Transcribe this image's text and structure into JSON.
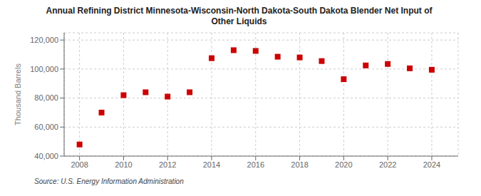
{
  "chart_data": {
    "type": "scatter",
    "title": "Annual Refining District Minnesota-Wisconsin-North Dakota-South Dakota Blender Net Input of\nOther Liquids",
    "ylabel": "Thousand Barrels",
    "source": "Source: U.S. Energy Information Administration",
    "x": [
      2008,
      2009,
      2010,
      2011,
      2012,
      2013,
      2014,
      2015,
      2016,
      2017,
      2018,
      2019,
      2020,
      2021,
      2022,
      2023,
      2024
    ],
    "values": [
      48000,
      70000,
      82000,
      84000,
      81000,
      84000,
      107500,
      113000,
      112500,
      108500,
      108000,
      105500,
      93000,
      102500,
      103500,
      100500,
      99500
    ],
    "color": "#cc0000",
    "marker": "square",
    "xlim": [
      2007.3,
      2025.2
    ],
    "xticks": [
      2008,
      2010,
      2012,
      2014,
      2016,
      2018,
      2020,
      2022,
      2024
    ],
    "ylim": [
      40000,
      125000
    ],
    "yticks": [
      {
        "value": 40000,
        "label": "40,000"
      },
      {
        "value": 60000,
        "label": "60,000"
      },
      {
        "value": 80000,
        "label": "80,000"
      },
      {
        "value": 100000,
        "label": "100,000"
      },
      {
        "value": 120000,
        "label": "120,000"
      }
    ],
    "grid": true
  }
}
